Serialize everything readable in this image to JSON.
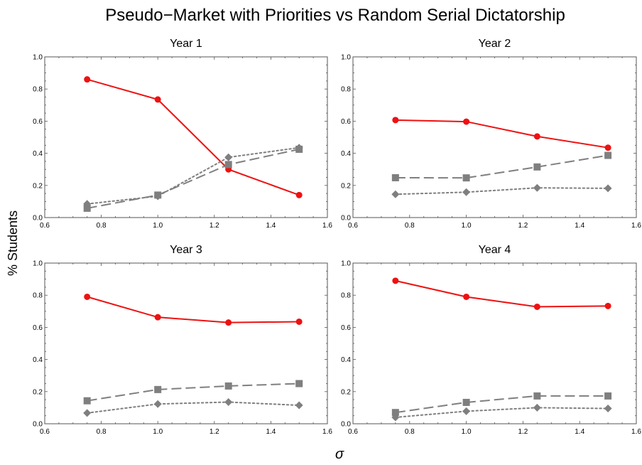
{
  "title": "Pseudo−Market with Priorities vs Random Serial Dictatorship",
  "ylabel": "% Students",
  "xlabel": "σ",
  "colors": {
    "red": "#ee1111",
    "gray": "#7f7f7f"
  },
  "chart_data": [
    {
      "type": "line",
      "title": "Year 1",
      "xlim": [
        0.6,
        1.6
      ],
      "ylim": [
        0.0,
        1.0
      ],
      "xticks": [
        "0.6",
        "0.8",
        "1.0",
        "1.2",
        "1.4",
        "1.6"
      ],
      "yticks": [
        "0.0",
        "0.2",
        "0.4",
        "0.6",
        "0.8",
        "1.0"
      ],
      "x": [
        0.75,
        1.0,
        1.25,
        1.5
      ],
      "series": [
        {
          "style": "solid",
          "marker": "circle",
          "color": "#ee1111",
          "values": [
            0.86,
            0.735,
            0.3,
            0.14
          ]
        },
        {
          "style": "dashed",
          "marker": "square",
          "color": "#7f7f7f",
          "values": [
            0.058,
            0.14,
            0.33,
            0.425
          ]
        },
        {
          "style": "dotted",
          "marker": "diamond",
          "color": "#7f7f7f",
          "values": [
            0.085,
            0.133,
            0.375,
            0.435
          ]
        }
      ]
    },
    {
      "type": "line",
      "title": "Year 2",
      "xlim": [
        0.6,
        1.6
      ],
      "ylim": [
        0.0,
        1.0
      ],
      "xticks": [
        "0.6",
        "0.8",
        "1.0",
        "1.2",
        "1.4",
        "1.6"
      ],
      "yticks": [
        "0.0",
        "0.2",
        "0.4",
        "0.6",
        "0.8",
        "1.0"
      ],
      "x": [
        0.75,
        1.0,
        1.25,
        1.5
      ],
      "series": [
        {
          "style": "solid",
          "marker": "circle",
          "color": "#ee1111",
          "values": [
            0.607,
            0.597,
            0.505,
            0.435
          ]
        },
        {
          "style": "dashed",
          "marker": "square",
          "color": "#7f7f7f",
          "values": [
            0.248,
            0.247,
            0.315,
            0.387
          ]
        },
        {
          "style": "dotted",
          "marker": "diamond",
          "color": "#7f7f7f",
          "values": [
            0.145,
            0.158,
            0.185,
            0.182
          ]
        }
      ]
    },
    {
      "type": "line",
      "title": "Year 3",
      "xlim": [
        0.6,
        1.6
      ],
      "ylim": [
        0.0,
        1.0
      ],
      "xticks": [
        "0.6",
        "0.8",
        "1.0",
        "1.2",
        "1.4",
        "1.6"
      ],
      "yticks": [
        "0.0",
        "0.2",
        "0.4",
        "0.6",
        "0.8",
        "1.0"
      ],
      "x": [
        0.75,
        1.0,
        1.25,
        1.5
      ],
      "series": [
        {
          "style": "solid",
          "marker": "circle",
          "color": "#ee1111",
          "values": [
            0.79,
            0.663,
            0.63,
            0.635
          ]
        },
        {
          "style": "dashed",
          "marker": "square",
          "color": "#7f7f7f",
          "values": [
            0.143,
            0.213,
            0.235,
            0.25
          ]
        },
        {
          "style": "dotted",
          "marker": "diamond",
          "color": "#7f7f7f",
          "values": [
            0.067,
            0.123,
            0.135,
            0.115
          ]
        }
      ]
    },
    {
      "type": "line",
      "title": "Year 4",
      "xlim": [
        0.6,
        1.6
      ],
      "ylim": [
        0.0,
        1.0
      ],
      "xticks": [
        "0.6",
        "0.8",
        "1.0",
        "1.2",
        "1.4",
        "1.6"
      ],
      "yticks": [
        "0.0",
        "0.2",
        "0.4",
        "0.6",
        "0.8",
        "1.0"
      ],
      "x": [
        0.75,
        1.0,
        1.25,
        1.5
      ],
      "series": [
        {
          "style": "solid",
          "marker": "circle",
          "color": "#ee1111",
          "values": [
            0.89,
            0.79,
            0.728,
            0.733
          ]
        },
        {
          "style": "dashed",
          "marker": "square",
          "color": "#7f7f7f",
          "values": [
            0.07,
            0.133,
            0.173,
            0.173
          ]
        },
        {
          "style": "dotted",
          "marker": "diamond",
          "color": "#7f7f7f",
          "values": [
            0.04,
            0.078,
            0.1,
            0.095
          ]
        }
      ]
    }
  ]
}
